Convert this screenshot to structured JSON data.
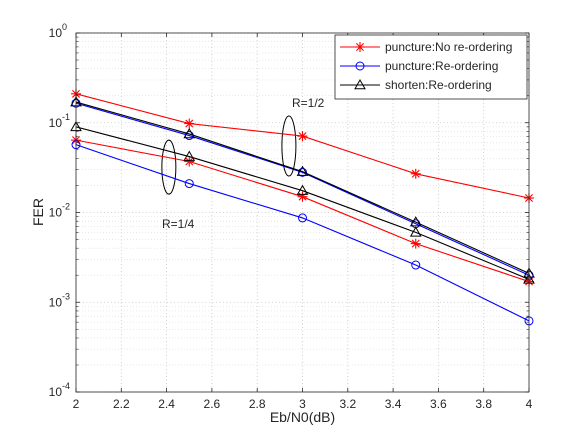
{
  "chart_data": {
    "type": "line",
    "xlabel": "Eb/N0(dB)",
    "ylabel": "FER",
    "xlim": [
      2,
      4
    ],
    "ylim": [
      0.0001,
      1
    ],
    "yscale": "log",
    "grid": true,
    "minor_grid": true,
    "legend_position": "top-right",
    "xticks": [
      {
        "value": 2,
        "label": "2"
      },
      {
        "value": 2.2,
        "label": "2.2"
      },
      {
        "value": 2.4,
        "label": "2.4"
      },
      {
        "value": 2.6,
        "label": "2.6"
      },
      {
        "value": 2.8,
        "label": "2.8"
      },
      {
        "value": 3,
        "label": "3"
      },
      {
        "value": 3.2,
        "label": "3.2"
      },
      {
        "value": 3.4,
        "label": "3.4"
      },
      {
        "value": 3.6,
        "label": "3.6"
      },
      {
        "value": 3.8,
        "label": "3.8"
      },
      {
        "value": 4,
        "label": "4"
      }
    ],
    "yticks": [
      {
        "value": 0.0001,
        "mantissa": "10",
        "exponent": "-4"
      },
      {
        "value": 0.001,
        "mantissa": "10",
        "exponent": "-3"
      },
      {
        "value": 0.01,
        "mantissa": "10",
        "exponent": "-2"
      },
      {
        "value": 0.1,
        "mantissa": "10",
        "exponent": "-1"
      },
      {
        "value": 1,
        "mantissa": "10",
        "exponent": "0"
      }
    ],
    "series": [
      {
        "name": "puncture:No re-ordering",
        "color": "#ff0000",
        "marker": "asterisk",
        "group": "R=1/2",
        "x": [
          2,
          2.5,
          3,
          3.5,
          4
        ],
        "y": [
          0.21,
          0.098,
          0.071,
          0.027,
          0.0145
        ]
      },
      {
        "name": "puncture:Re-ordering",
        "color": "#0000ff",
        "marker": "circle",
        "group": "R=1/2",
        "x": [
          2,
          2.5,
          3,
          3.5,
          4
        ],
        "y": [
          0.165,
          0.072,
          0.028,
          0.0075,
          0.002
        ]
      },
      {
        "name": "shorten:Re-ordering",
        "color": "#000000",
        "marker": "triangle",
        "group": "R=1/2",
        "x": [
          2,
          2.5,
          3,
          3.5,
          4
        ],
        "y": [
          0.17,
          0.075,
          0.0285,
          0.0078,
          0.0021
        ]
      },
      {
        "name": "puncture:No re-ordering",
        "color": "#ff0000",
        "marker": "asterisk",
        "group": "R=1/4",
        "x": [
          2,
          2.5,
          3,
          3.5,
          4
        ],
        "y": [
          0.064,
          0.037,
          0.015,
          0.0045,
          0.0017
        ]
      },
      {
        "name": "puncture:Re-ordering",
        "color": "#0000ff",
        "marker": "circle",
        "group": "R=1/4",
        "x": [
          2,
          2.5,
          3,
          3.5,
          4
        ],
        "y": [
          0.057,
          0.021,
          0.0087,
          0.0026,
          0.00062
        ]
      },
      {
        "name": "shorten:Re-ordering",
        "color": "#000000",
        "marker": "triangle",
        "group": "R=1/4",
        "x": [
          2,
          2.5,
          3,
          3.5,
          4
        ],
        "y": [
          0.09,
          0.042,
          0.0175,
          0.006,
          0.0018
        ]
      }
    ],
    "legend": [
      {
        "label": "puncture:No re-ordering",
        "color": "#ff0000",
        "marker": "asterisk"
      },
      {
        "label": "puncture:Re-ordering",
        "color": "#0000ff",
        "marker": "circle"
      },
      {
        "label": "shorten:Re-ordering",
        "color": "#000000",
        "marker": "triangle"
      }
    ],
    "annotations": [
      {
        "text": "R=1/2",
        "x": 3,
        "y": 0.11,
        "ellipse_center": {
          "x": 2.94,
          "y": 0.055
        }
      },
      {
        "text": "R=1/4",
        "x": 2.42,
        "y": 0.0043,
        "ellipse_center": {
          "x": 2.41,
          "y": 0.032
        }
      }
    ]
  }
}
